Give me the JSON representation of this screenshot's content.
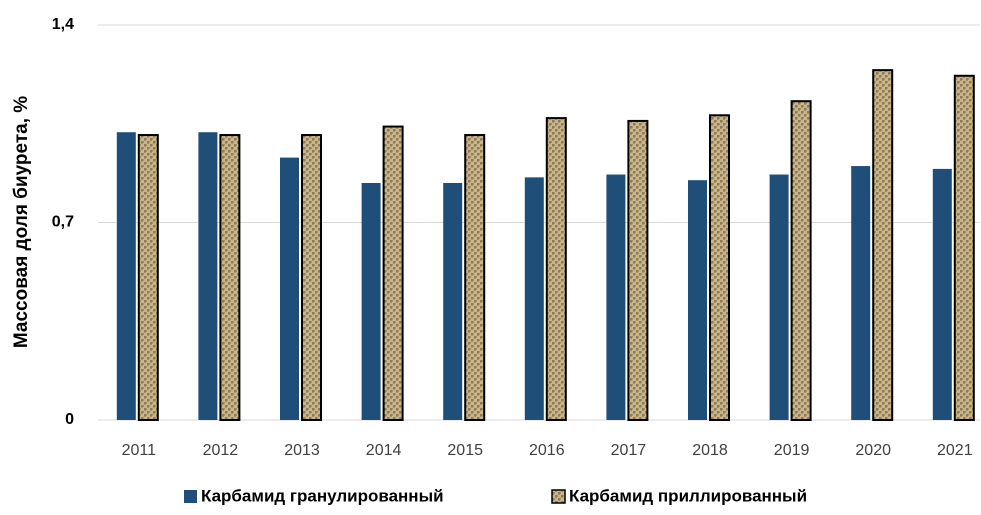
{
  "chart_data": {
    "type": "bar",
    "y_label": "Массовая доля биурета, %",
    "categories": [
      "2011",
      "2012",
      "2013",
      "2014",
      "2015",
      "2016",
      "2017",
      "2018",
      "2019",
      "2020",
      "2021"
    ],
    "series": [
      {
        "name": "Карбамид гранулированный",
        "color": "#1f4e79",
        "values": [
          1.02,
          1.02,
          0.93,
          0.84,
          0.84,
          0.86,
          0.87,
          0.85,
          0.87,
          0.9,
          0.89
        ]
      },
      {
        "name": "Карбамид приллированный",
        "color": "#c9b58a",
        "values": [
          1.01,
          1.01,
          1.01,
          1.04,
          1.01,
          1.07,
          1.06,
          1.08,
          1.13,
          1.24,
          1.22
        ]
      }
    ],
    "ylim": [
      0,
      1.4
    ],
    "yticks": [
      0,
      {
        "value": 0.7,
        "label": "0,7"
      },
      {
        "value": 1.4,
        "label": "1,4"
      }
    ],
    "grid": true,
    "legend": "bottom"
  }
}
